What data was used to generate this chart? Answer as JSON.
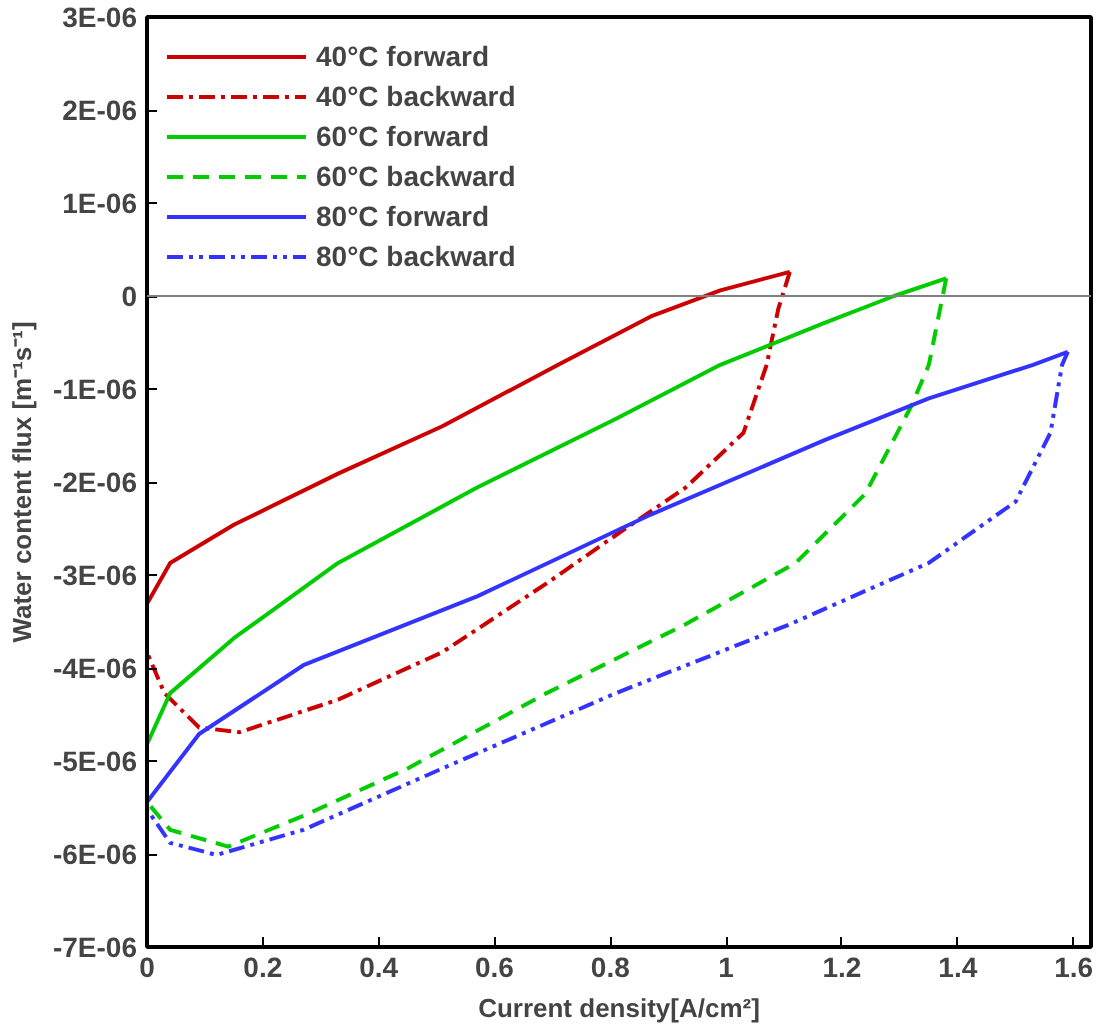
{
  "chart_data": {
    "type": "line",
    "xlabel": "Current density[A/cm²]",
    "ylabel": "Water content flux [m⁻¹s⁻¹]",
    "xlim": [
      0,
      1.63
    ],
    "ylim": [
      -7e-06,
      3e-06
    ],
    "xticks": [
      0,
      0.2,
      0.4,
      0.6,
      0.8,
      1,
      1.2,
      1.4,
      1.6
    ],
    "yticks": [
      {
        "value": -7e-06,
        "label": "-7E-06"
      },
      {
        "value": -6e-06,
        "label": "-6E-06"
      },
      {
        "value": -5e-06,
        "label": "-5E-06"
      },
      {
        "value": -4e-06,
        "label": "-4E-06"
      },
      {
        "value": -3e-06,
        "label": "-3E-06"
      },
      {
        "value": -2e-06,
        "label": "-2E-06"
      },
      {
        "value": -1e-06,
        "label": "-1E-06"
      },
      {
        "value": 0,
        "label": "0"
      },
      {
        "value": 1e-06,
        "label": "1E-06"
      },
      {
        "value": 2e-06,
        "label": "2E-06"
      },
      {
        "value": 3e-06,
        "label": "3E-06"
      }
    ],
    "grid": false,
    "legend": "top left",
    "ref_lines": [
      {
        "axis": "y",
        "value": 0,
        "color": "#808080"
      }
    ],
    "series": [
      {
        "name": "40°C forward",
        "color": "#cc0000",
        "line_style": "solid",
        "x": [
          0,
          0.04,
          0.15,
          0.33,
          0.51,
          0.71,
          0.87,
          0.99,
          1.11
        ],
        "values": [
          -3.31e-06,
          -2.87e-06,
          -2.46e-06,
          -1.91e-06,
          -1.4e-06,
          -7.4e-07,
          -2.2e-07,
          6e-08,
          2.6e-07
        ]
      },
      {
        "name": "40°C backward",
        "color": "#cc0000",
        "line_style": "dashdot",
        "x": [
          1.11,
          1.09,
          1.07,
          1.03,
          0.93,
          0.81,
          0.69,
          0.51,
          0.33,
          0.16,
          0.09,
          0.03,
          0
        ],
        "values": [
          2.6e-07,
          -1.4e-07,
          -7.4e-07,
          -1.47e-06,
          -2.06e-06,
          -2.57e-06,
          -3.09e-06,
          -3.83e-06,
          -4.34e-06,
          -4.69e-06,
          -4.64e-06,
          -4.27e-06,
          -3.83e-06
        ]
      },
      {
        "name": "60°C forward",
        "color": "#00cc00",
        "line_style": "solid",
        "x": [
          0,
          0.04,
          0.15,
          0.33,
          0.57,
          0.81,
          0.99,
          1.17,
          1.29,
          1.38
        ],
        "values": [
          -4.82e-06,
          -4.27e-06,
          -3.68e-06,
          -2.87e-06,
          -2.06e-06,
          -1.32e-06,
          -7.4e-07,
          -2.9e-07,
          0,
          1.9e-07
        ]
      },
      {
        "name": "60°C backward",
        "color": "#00cc00",
        "line_style": "dashed",
        "x": [
          1.38,
          1.35,
          1.32,
          1.24,
          1.12,
          0.93,
          0.69,
          0.45,
          0.27,
          0.14,
          0.04,
          0
        ],
        "values": [
          1.9e-07,
          -7.4e-07,
          -1.18e-06,
          -2.13e-06,
          -2.87e-06,
          -3.53e-06,
          -4.27e-06,
          -5.08e-06,
          -5.59e-06,
          -5.92e-06,
          -5.74e-06,
          -5.44e-06
        ]
      },
      {
        "name": "80°C forward",
        "color": "#3333ff",
        "line_style": "solid",
        "x": [
          0,
          0.09,
          0.27,
          0.57,
          0.87,
          1.17,
          1.35,
          1.53,
          1.59
        ],
        "values": [
          -5.44e-06,
          -4.71e-06,
          -3.97e-06,
          -3.23e-06,
          -2.35e-06,
          -1.55e-06,
          -1.1e-06,
          -7.4e-07,
          -6e-07
        ]
      },
      {
        "name": "80°C backward",
        "color": "#3333ff",
        "line_style": "dashdotdot",
        "x": [
          1.59,
          1.58,
          1.56,
          1.5,
          1.35,
          1.11,
          0.81,
          0.51,
          0.27,
          0.12,
          0.04,
          0
        ],
        "values": [
          -6e-07,
          -7.4e-07,
          -1.47e-06,
          -2.21e-06,
          -2.87e-06,
          -3.53e-06,
          -4.27e-06,
          -5.08e-06,
          -5.74e-06,
          -6.01e-06,
          -5.88e-06,
          -5.52e-06
        ]
      }
    ]
  }
}
